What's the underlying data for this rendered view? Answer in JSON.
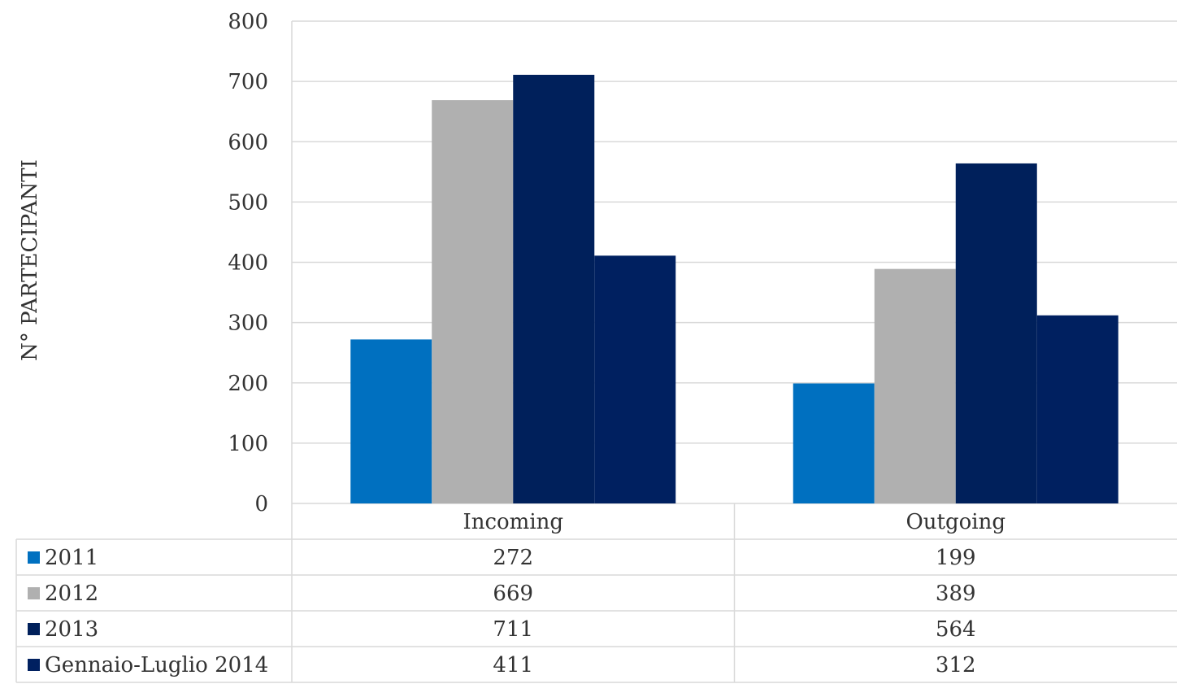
{
  "chart_data": {
    "type": "bar",
    "ylabel": "N° PARTECIPANTI",
    "ylim": [
      0,
      800
    ],
    "yticks": [
      0,
      100,
      200,
      300,
      400,
      500,
      600,
      700,
      800
    ],
    "categories": [
      "Incoming",
      "Outgoing"
    ],
    "series": [
      {
        "name": "2011",
        "values": [
          272,
          199
        ],
        "color": "#0070C0"
      },
      {
        "name": "2012",
        "values": [
          669,
          389
        ],
        "color": "#B0B0B0"
      },
      {
        "name": "2013",
        "values": [
          711,
          564
        ],
        "color": "#00205B"
      },
      {
        "name": "Gennaio-Luglio 2014",
        "values": [
          411,
          312
        ],
        "color": "#002060"
      }
    ],
    "grid": true,
    "data_table": true,
    "legend": "data-table"
  }
}
